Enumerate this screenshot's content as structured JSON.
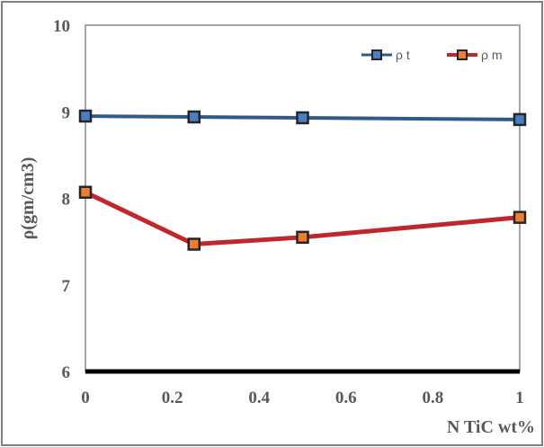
{
  "chart_data": {
    "type": "line",
    "xlabel": "N TiC wt%",
    "ylabel": "ρ(gm/cm3)",
    "x": [
      0,
      0.25,
      0.5,
      1
    ],
    "xlim": [
      0,
      1
    ],
    "ylim": [
      6,
      10
    ],
    "x_ticks": [
      "0",
      "0.2",
      "0.4",
      "0.6",
      "0.8",
      "1"
    ],
    "y_ticks": [
      "6",
      "7",
      "8",
      "9",
      "10"
    ],
    "grid": false,
    "legend_position": "top-right",
    "series": [
      {
        "name": "ρ t",
        "values": [
          8.95,
          8.94,
          8.93,
          8.91
        ],
        "color": "#2e5b8a",
        "marker_color": "#4a7fc6"
      },
      {
        "name": "ρ m",
        "values": [
          8.07,
          7.47,
          7.55,
          7.78
        ],
        "color": "#c0262b",
        "marker_color": "#ec7d31"
      }
    ]
  }
}
